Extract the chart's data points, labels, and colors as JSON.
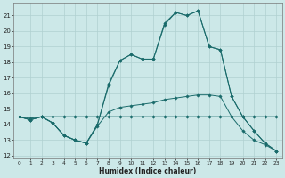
{
  "xlabel": "Humidex (Indice chaleur)",
  "bg_color": "#cce8e8",
  "grid_color": "#b0d0d0",
  "line_color": "#1a6b6b",
  "xlim": [
    -0.5,
    23.5
  ],
  "ylim": [
    11.8,
    21.8
  ],
  "yticks": [
    12,
    13,
    14,
    15,
    16,
    17,
    18,
    19,
    20,
    21
  ],
  "xticks": [
    0,
    1,
    2,
    3,
    4,
    5,
    6,
    7,
    8,
    9,
    10,
    11,
    12,
    13,
    14,
    15,
    16,
    17,
    18,
    19,
    20,
    21,
    22,
    23
  ],
  "series": [
    {
      "x": [
        0,
        1,
        2,
        3,
        4,
        5,
        6,
        7,
        8,
        9,
        10,
        11,
        12,
        13,
        14,
        15,
        16,
        17,
        18,
        19,
        20,
        21,
        22,
        23
      ],
      "y": [
        14.5,
        14.4,
        14.5,
        14.5,
        14.5,
        14.5,
        14.5,
        14.5,
        14.5,
        14.5,
        14.5,
        14.5,
        14.5,
        14.5,
        14.5,
        14.5,
        14.5,
        14.5,
        14.5,
        14.5,
        14.5,
        14.5,
        14.5,
        14.5
      ]
    },
    {
      "x": [
        0,
        1,
        2,
        3,
        4,
        5,
        6,
        7,
        8,
        9,
        10,
        11,
        12,
        13,
        14,
        15,
        16,
        17,
        18,
        19,
        20,
        21,
        22,
        23
      ],
      "y": [
        14.5,
        14.3,
        14.5,
        14.1,
        13.3,
        13.0,
        12.8,
        13.9,
        14.8,
        15.1,
        15.2,
        15.3,
        15.4,
        15.6,
        15.7,
        15.8,
        15.9,
        15.9,
        15.8,
        14.5,
        13.6,
        13.0,
        12.7,
        12.3
      ]
    },
    {
      "x": [
        0,
        1,
        2,
        3,
        4,
        5,
        6,
        7,
        8,
        9,
        10,
        11,
        12,
        13,
        14,
        15,
        16,
        17,
        18,
        19,
        20,
        21,
        22,
        23
      ],
      "y": [
        14.5,
        14.3,
        14.5,
        14.1,
        13.3,
        13.0,
        12.8,
        14.0,
        16.6,
        18.1,
        18.5,
        18.2,
        18.2,
        20.4,
        21.2,
        21.0,
        21.3,
        19.0,
        18.8,
        15.8,
        14.5,
        13.6,
        12.8,
        12.3
      ]
    },
    {
      "x": [
        0,
        1,
        2,
        3,
        4,
        5,
        6,
        7,
        8,
        9,
        10,
        11,
        12,
        13,
        14,
        15,
        16,
        17,
        18,
        19,
        20,
        21,
        22,
        23
      ],
      "y": [
        14.5,
        14.3,
        14.5,
        14.1,
        13.3,
        13.0,
        12.8,
        14.0,
        16.5,
        18.1,
        18.5,
        18.2,
        18.2,
        20.5,
        21.2,
        21.0,
        21.3,
        19.0,
        18.8,
        15.8,
        14.5,
        13.6,
        12.8,
        12.3
      ]
    }
  ]
}
